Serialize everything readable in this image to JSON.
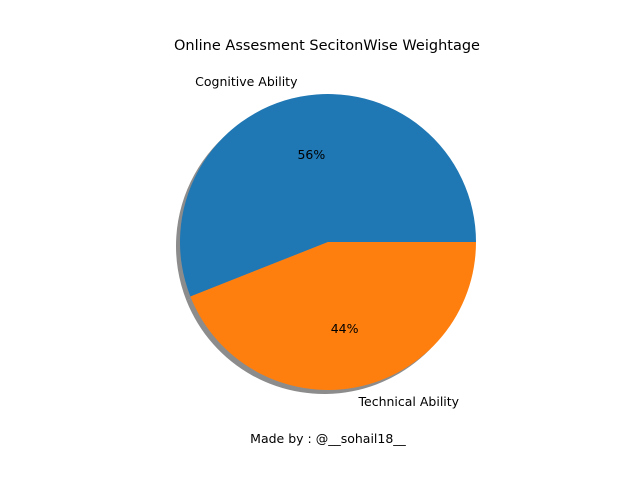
{
  "chart_data": {
    "type": "pie",
    "title": "Online Assesment SecitonWise Weightage",
    "slices": [
      {
        "label": "Cognitive Ability",
        "value": 56,
        "pct_label": "56%",
        "color": "#1f77b4"
      },
      {
        "label": "Technical Ability",
        "value": 44,
        "pct_label": "44%",
        "color": "#ff7f0e"
      }
    ],
    "start_angle_deg": 0,
    "direction": "counterclockwise",
    "shadow": true,
    "legend": "none"
  },
  "footer_text": "Made by : @__sohail18__"
}
